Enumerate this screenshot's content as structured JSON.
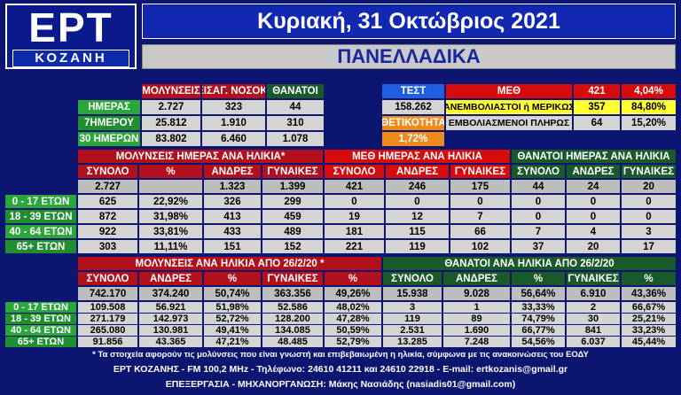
{
  "header": {
    "logo_main": "ΕΡΤ",
    "logo_sub": "ΚΟΖΑΝΗ",
    "date": "Κυριακή, 31 Οκτώβριος 2021",
    "region": "ΠΑΝΕΛΛΑΔΙΚΑ"
  },
  "summary": {
    "headers": [
      "ΜΟΛΥΝΣΕΙΣ",
      "ΕΙΣΑΓ. ΝΟΣΟΚ.",
      "ΘΑΝΑΤΟΙ"
    ],
    "rows": [
      {
        "label": "ΗΜΕΡΑΣ",
        "values": [
          "2.727",
          "323",
          "44"
        ]
      },
      {
        "label": "7ΗΜΕΡΟΥ",
        "values": [
          "25.812",
          "1.910",
          "310"
        ]
      },
      {
        "label": "30 ΗΜΕΡΩΝ",
        "values": [
          "83.802",
          "6.460",
          "1.078"
        ]
      }
    ]
  },
  "tests": {
    "label": "ΤΕΣΤ",
    "value": "158.262",
    "positivity_label": "ΘΕΤΙΚΟΤΗΤΑ",
    "positivity_value": "1,72%"
  },
  "icu": {
    "label": "ΜΕΘ",
    "total": "421",
    "total_pct": "4,04%",
    "rows": [
      {
        "label": "ΑΝΕΜΒΟΛΙΑΣΤΟΙ ή ΜΕΡΙΚΩΣ",
        "value": "357",
        "pct": "84,80%"
      },
      {
        "label": "ΕΜΒΟΛΙΑΣΜΕΝΟΙ ΠΛΗΡΩΣ",
        "value": "64",
        "pct": "15,20%"
      }
    ]
  },
  "daily_age": {
    "group_headers": [
      "ΜΟΛΥΝΣΕΙΣ ΗΜΕΡΑΣ ΑΝΑ ΗΛΙΚΙΑ*",
      "ΜΕΘ ΗΜΕΡΑΣ ΑΝΑ ΗΛΙΚΙΑ",
      "ΘΑΝΑΤΟΙ ΗΜΕΡΑΣ ΑΝΑ ΗΛΙΚΙΑ"
    ],
    "sub_headers": [
      "ΣΥΝΟΛΟ",
      "%",
      "ΑΝΔΡΕΣ",
      "ΓΥΝΑΙΚΕΣ",
      "ΣΥΝΟΛΟ",
      "ΑΝΔΡΕΣ",
      "ΓΥΝΑΙΚΕΣ",
      "ΣΥΝΟΛΟ",
      "ΑΝΔΡΕΣ",
      "ΓΥΝΑΙΚΕΣ"
    ],
    "totals": [
      "2.727",
      "",
      "1.323",
      "1.399",
      "421",
      "246",
      "175",
      "44",
      "24",
      "20"
    ],
    "rows": [
      {
        "label": "0 - 17 ΕΤΩΝ",
        "values": [
          "625",
          "22,92%",
          "326",
          "299",
          "0",
          "0",
          "0",
          "0",
          "0",
          "0"
        ]
      },
      {
        "label": "18 - 39 ΕΤΩΝ",
        "values": [
          "872",
          "31,98%",
          "413",
          "459",
          "19",
          "12",
          "7",
          "0",
          "0",
          "0"
        ]
      },
      {
        "label": "40 - 64 ΕΤΩΝ",
        "values": [
          "922",
          "33,81%",
          "433",
          "489",
          "181",
          "115",
          "66",
          "7",
          "4",
          "3"
        ]
      },
      {
        "label": "65+ ΕΤΩΝ",
        "values": [
          "303",
          "11,11%",
          "151",
          "152",
          "221",
          "119",
          "102",
          "37",
          "20",
          "17"
        ]
      }
    ]
  },
  "cumulative_age": {
    "group_headers": [
      "ΜΟΛΥΝΣΕΙΣ ΑΝΑ ΗΛΙΚΙΑ ΑΠΟ 26/2/20 *",
      "ΘΑΝΑΤΟΙ ΑΝΑ ΗΛΙΚΙΑ ΑΠΟ 26/2/20"
    ],
    "sub_headers": [
      "ΣΥΝΟΛΟ",
      "ΑΝΔΡΕΣ",
      "%",
      "ΓΥΝΑΙΚΕΣ",
      "%",
      "ΣΥΝΟΛΟ",
      "ΑΝΔΡΕΣ",
      "%",
      "ΓΥΝΑΙΚΕΣ",
      "%"
    ],
    "totals": [
      "742.170",
      "374.240",
      "50,74%",
      "363.356",
      "49,26%",
      "15.938",
      "9.028",
      "56,64%",
      "6.910",
      "43,36%"
    ],
    "rows": [
      {
        "label": "0 - 17 ΕΤΩΝ",
        "values": [
          "109.508",
          "56.921",
          "51,98%",
          "52.586",
          "48,02%",
          "3",
          "1",
          "33,33%",
          "2",
          "66,67%"
        ]
      },
      {
        "label": "18 - 39 ΕΤΩΝ",
        "values": [
          "271.179",
          "142.973",
          "52,72%",
          "128.200",
          "47,28%",
          "119",
          "89",
          "74,79%",
          "30",
          "25,21%"
        ]
      },
      {
        "label": "40 - 64 ΕΤΩΝ",
        "values": [
          "265.080",
          "130.981",
          "49,41%",
          "134.085",
          "50,59%",
          "2.531",
          "1.690",
          "66,77%",
          "841",
          "33,23%"
        ]
      },
      {
        "label": "65+ ΕΤΩΝ",
        "values": [
          "91.856",
          "43.365",
          "47,21%",
          "48.485",
          "52,79%",
          "13.285",
          "7.248",
          "54,56%",
          "6.037",
          "45,44%"
        ]
      }
    ]
  },
  "footer": {
    "note": "* Τα στοιχεία αφορούν τις μολύνσεις που είναι γνωστή και επιβεβαιωμένη η ηλικία, σύμφωνα με τις ανακοινώσεις του ΕΟΔΥ",
    "contact": "ΕΡΤ ΚΟΖΑΝΗΣ - FM 100,2 MHz - Τηλέφωνο:  24610 41211 και 24610 22918 - E-mail: ertkozanis@gmail.gr",
    "credits": "ΕΠΕΞΕΡΓΑΣΙΑ - ΜΗΧΑΝΟΡΓΑΝΩΣΗ: Μάκης Νασιάδης (nasiadis01@gmail.com)"
  }
}
